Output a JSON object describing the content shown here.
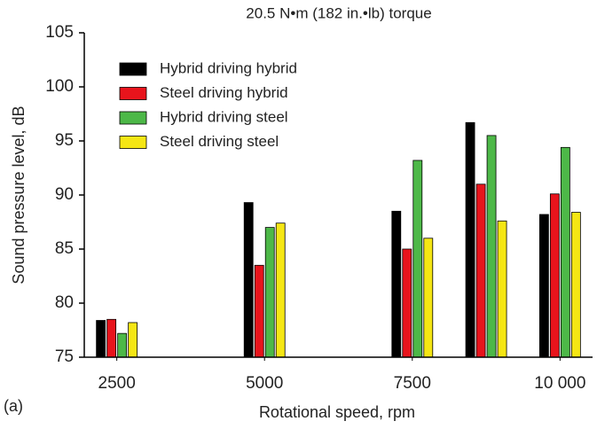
{
  "chart_data": {
    "type": "bar",
    "title": "20.5 N•m (182 in.•lb) torque",
    "panel_label": "(a)",
    "x_label": "Rotational speed, rpm",
    "y_label": "Sound pressure level, dB",
    "x": [
      2500,
      5000,
      7500,
      8750,
      10000
    ],
    "series": [
      {
        "name": "Hybrid driving hybrid",
        "color": "#000000",
        "values": [
          78.4,
          89.3,
          88.5,
          96.7,
          88.2
        ]
      },
      {
        "name": "Steel driving hybrid",
        "color": "#e8141c",
        "values": [
          78.5,
          83.5,
          85.0,
          91.0,
          90.1
        ]
      },
      {
        "name": "Hybrid driving steel",
        "color": "#4db848",
        "values": [
          77.2,
          87.0,
          93.2,
          95.5,
          94.4
        ]
      },
      {
        "name": "Steel driving steel",
        "color": "#f5e614",
        "values": [
          78.2,
          87.4,
          86.0,
          87.6,
          88.4
        ]
      }
    ],
    "xlim": [
      1950,
      10550
    ],
    "xticks": [
      2500,
      5000,
      7500,
      {
        "value": 10000,
        "label": "10 000"
      }
    ],
    "ylim": [
      75,
      105
    ],
    "yticks": [
      75,
      80,
      85,
      90,
      95,
      100,
      105
    ],
    "legend": "upper left",
    "grid": false
  }
}
